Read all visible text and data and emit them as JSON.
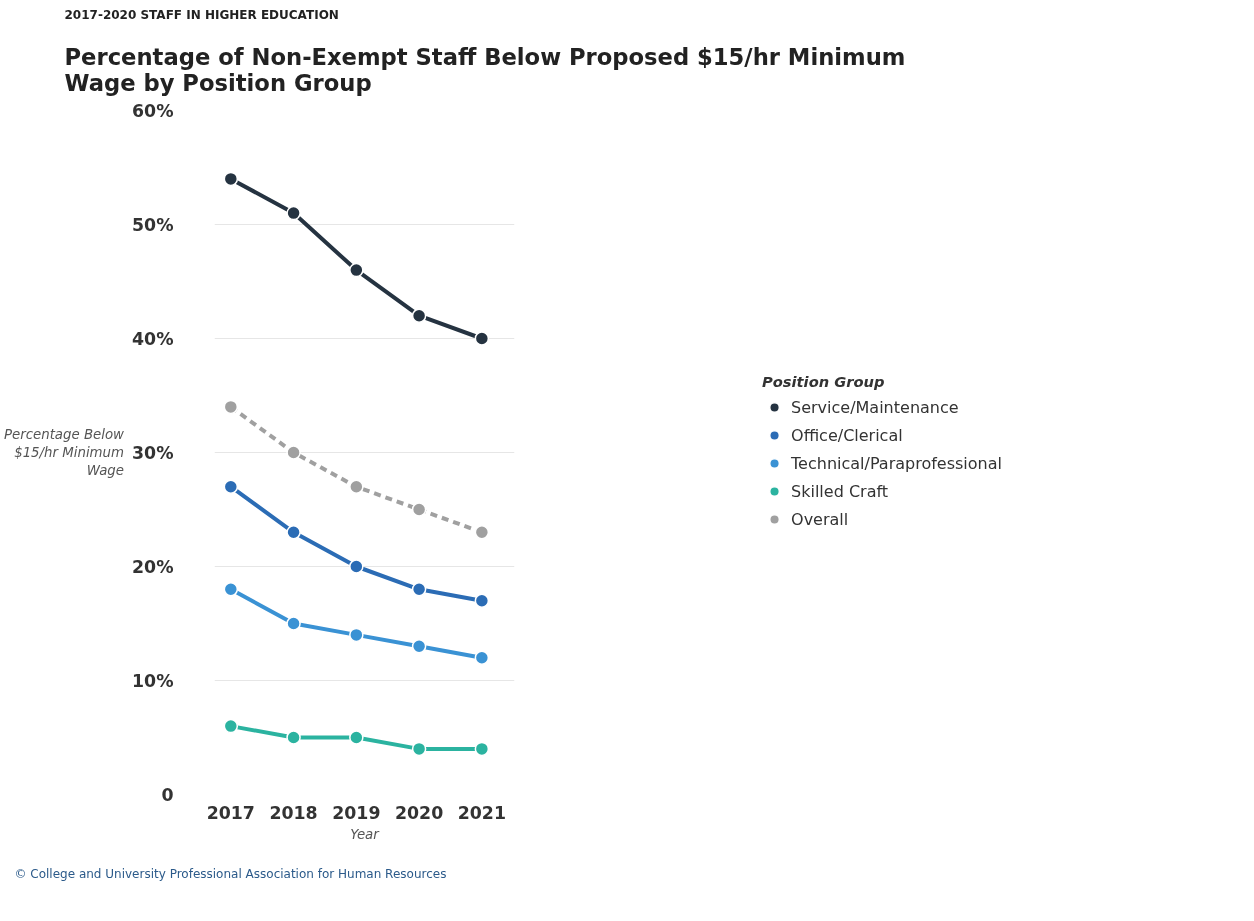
{
  "chart_data": {
    "type": "line",
    "subtitle": "2017-2020 STAFF IN HIGHER EDUCATION",
    "title": "Percentage of Non-Exempt Staff Below Proposed $15/hr Minimum Wage by Position Group",
    "xlabel": "Year",
    "ylabel": "Percentage Below $15/hr Minimum Wage",
    "legend_title": "Position Group",
    "x": [
      2017,
      2018,
      2019,
      2020,
      2021
    ],
    "series": [
      {
        "name": "Service/Maintenance",
        "color": "#253341",
        "values": [
          54,
          51,
          46,
          42,
          40
        ]
      },
      {
        "name": "Office/Clerical",
        "color": "#2b6cb5",
        "values": [
          27,
          23,
          20,
          18,
          17
        ]
      },
      {
        "name": "Technical/Paraprofessional",
        "color": "#3a92d4",
        "values": [
          18,
          15,
          14,
          13,
          12
        ]
      },
      {
        "name": "Skilled Craft",
        "color": "#2bb3a0",
        "values": [
          6,
          5,
          5,
          4,
          4
        ]
      },
      {
        "name": "Overall",
        "color": "#a0a0a0",
        "values": [
          34,
          30,
          27,
          25,
          23
        ],
        "line_style": "dashed"
      }
    ],
    "xlim": [
      2016.74,
      2021.52
    ],
    "xticks": [
      2017,
      2018,
      2019,
      2020,
      2021
    ],
    "ylim": [
      0,
      60
    ],
    "yticks": [
      {
        "value": 0,
        "label": "0"
      },
      {
        "value": 10,
        "label": "10%"
      },
      {
        "value": 20,
        "label": "20%"
      },
      {
        "value": 30,
        "label": "30%"
      },
      {
        "value": 40,
        "label": "40%"
      },
      {
        "value": 50,
        "label": "50%"
      },
      {
        "value": 60,
        "label": "60%"
      }
    ],
    "grid": "y",
    "legend": "right",
    "marker": "circle",
    "line_style": "solid",
    "annotations": [
      "© College and University Professional Association for Human Resources"
    ]
  }
}
